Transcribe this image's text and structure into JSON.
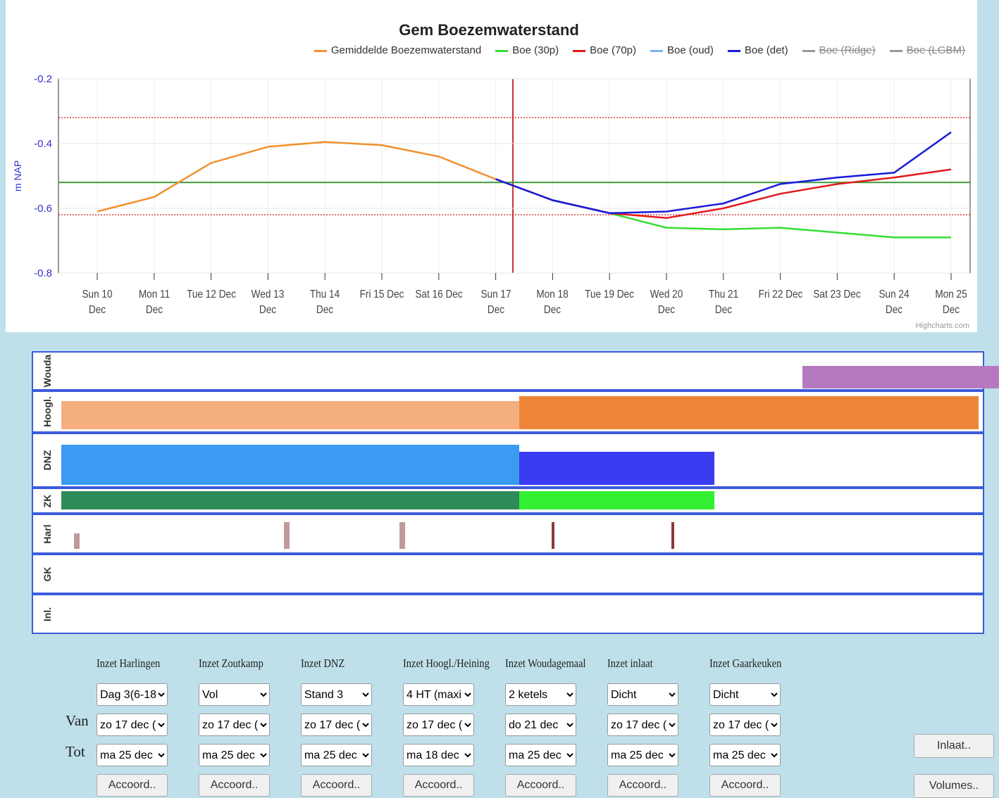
{
  "chart_data": {
    "type": "line",
    "title": "Gem Boezemwaterstand",
    "y_label": "m NAP",
    "credits": "Highcharts.com",
    "categories": [
      "Sun 10\nDec",
      "Mon 11\nDec",
      "Tue 12 Dec",
      "Wed 13\nDec",
      "Thu 14\nDec",
      "Fri 15 Dec",
      "Sat 16 Dec",
      "Sun 17\nDec",
      "Mon 18\nDec",
      "Tue 19 Dec",
      "Wed 20\nDec",
      "Thu 21\nDec",
      "Fri 22 Dec",
      "Sat 23 Dec",
      "Sun 24\nDec",
      "Mon 25\nDec"
    ],
    "ylim": [
      -0.8,
      -0.2
    ],
    "yticks": [
      -0.8,
      -0.6,
      -0.4,
      -0.2
    ],
    "grid": true,
    "plot_lines": [
      {
        "value": -0.32,
        "color": "#cc0000",
        "dash": true
      },
      {
        "value": -0.62,
        "color": "#cc0000",
        "dash": true
      },
      {
        "value": -0.52,
        "color": "#3a9a3a",
        "dash": false
      }
    ],
    "series": [
      {
        "name": "Gemiddelde Boezemwaterstand",
        "color": "#f28f2c",
        "visible": true,
        "values": [
          -0.61,
          -0.565,
          -0.46,
          -0.41,
          -0.395,
          -0.405,
          -0.44,
          -0.51,
          null,
          null,
          null,
          null,
          null,
          null,
          null,
          null
        ]
      },
      {
        "name": "Boe (30p)",
        "color": "#33dd33",
        "visible": true,
        "values": [
          null,
          null,
          null,
          null,
          null,
          null,
          null,
          -0.51,
          -0.575,
          -0.615,
          -0.66,
          -0.665,
          -0.66,
          -0.675,
          -0.69,
          -0.69
        ]
      },
      {
        "name": "Boe (70p)",
        "color": "#e31a1c",
        "visible": true,
        "values": [
          null,
          null,
          null,
          null,
          null,
          null,
          null,
          -0.51,
          -0.575,
          -0.615,
          -0.63,
          -0.6,
          -0.555,
          -0.525,
          -0.505,
          -0.48
        ]
      },
      {
        "name": "Boe (oud)",
        "color": "#7cb5ec",
        "visible": true,
        "values": [
          null,
          null,
          null,
          null,
          null,
          null,
          null,
          null,
          null,
          null,
          null,
          null,
          null,
          null,
          null,
          null
        ]
      },
      {
        "name": "Boe (det)",
        "color": "#1a1adb",
        "visible": true,
        "values": [
          null,
          null,
          null,
          null,
          null,
          null,
          null,
          -0.51,
          -0.575,
          -0.615,
          -0.61,
          -0.585,
          -0.525,
          -0.505,
          -0.49,
          -0.365
        ]
      },
      {
        "name": "Boe (Ridge)",
        "color": "#999999",
        "visible": false,
        "values": [
          null,
          null,
          null,
          null,
          null,
          null,
          null,
          null,
          null,
          null,
          null,
          null,
          null,
          null,
          null,
          null
        ]
      },
      {
        "name": "Boe (LGBM)",
        "color": "#999999",
        "visible": false,
        "values": [
          null,
          null,
          null,
          null,
          null,
          null,
          null,
          null,
          null,
          null,
          null,
          null,
          null,
          null,
          null,
          null
        ]
      }
    ]
  },
  "strips": [
    {
      "label": "Wouda"
    },
    {
      "label": "Hoogl."
    },
    {
      "label": "DNZ"
    },
    {
      "label": "ZK"
    },
    {
      "label": "Harl"
    },
    {
      "label": "GK"
    },
    {
      "label": "Inl."
    }
  ],
  "controls": {
    "row_labels": [
      "Van",
      "Tot"
    ],
    "columns": [
      {
        "header": "Inzet Harlingen",
        "selects": [
          "Dag 3(6-18",
          "zo 17 dec (",
          "ma 25 dec"
        ],
        "button": "Accoord.."
      },
      {
        "header": "Inzet Zoutkamp",
        "selects": [
          "Vol",
          "zo 17 dec (",
          "ma 25 dec"
        ],
        "button": "Accoord.."
      },
      {
        "header": "Inzet DNZ",
        "selects": [
          "Stand 3",
          "zo 17 dec (",
          "ma 25 dec"
        ],
        "button": "Accoord.."
      },
      {
        "header": "Inzet Hoogl./Heining",
        "selects": [
          "4 HT (maxi",
          "zo 17 dec (",
          "ma 18 dec"
        ],
        "button": "Accoord.."
      },
      {
        "header": "Inzet Woudagemaal",
        "selects": [
          "2 ketels",
          "do 21 dec",
          "ma 25 dec"
        ],
        "button": "Accoord.."
      },
      {
        "header": "Inzet inlaat",
        "selects": [
          "Dicht",
          "zo 17 dec (",
          "ma 25 dec"
        ],
        "button": "Accoord.."
      },
      {
        "header": "Inzet Gaarkeuken",
        "selects": [
          "Dicht",
          "zo 17 dec (",
          "ma 25 dec"
        ],
        "button": "Accoord.."
      }
    ],
    "side_buttons": [
      "Inlaat..",
      "Volumes.."
    ]
  }
}
